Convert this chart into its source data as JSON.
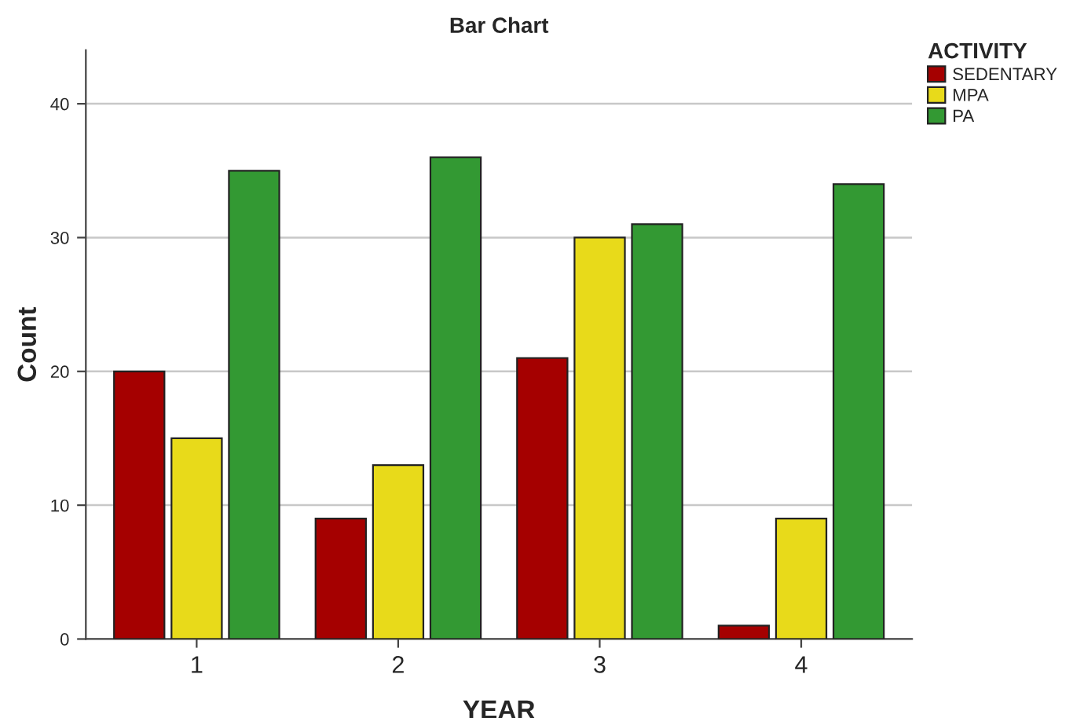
{
  "chart_data": {
    "type": "bar",
    "title": "Bar Chart",
    "xlabel": "YEAR",
    "ylabel": "Count",
    "legend_title": "ACTIVITY",
    "categories": [
      "1",
      "2",
      "3",
      "4"
    ],
    "series": [
      {
        "name": "SEDENTARY",
        "color": "#a50000",
        "values": [
          20,
          9,
          21,
          1
        ]
      },
      {
        "name": "MPA",
        "color": "#e8da1a",
        "values": [
          15,
          13,
          30,
          9
        ]
      },
      {
        "name": "PA",
        "color": "#339933",
        "values": [
          35,
          36,
          31,
          34
        ]
      }
    ],
    "ylim": [
      0,
      44
    ],
    "yticks": [
      0,
      10,
      20,
      30,
      40
    ],
    "grid": "y",
    "legend": "top right"
  }
}
